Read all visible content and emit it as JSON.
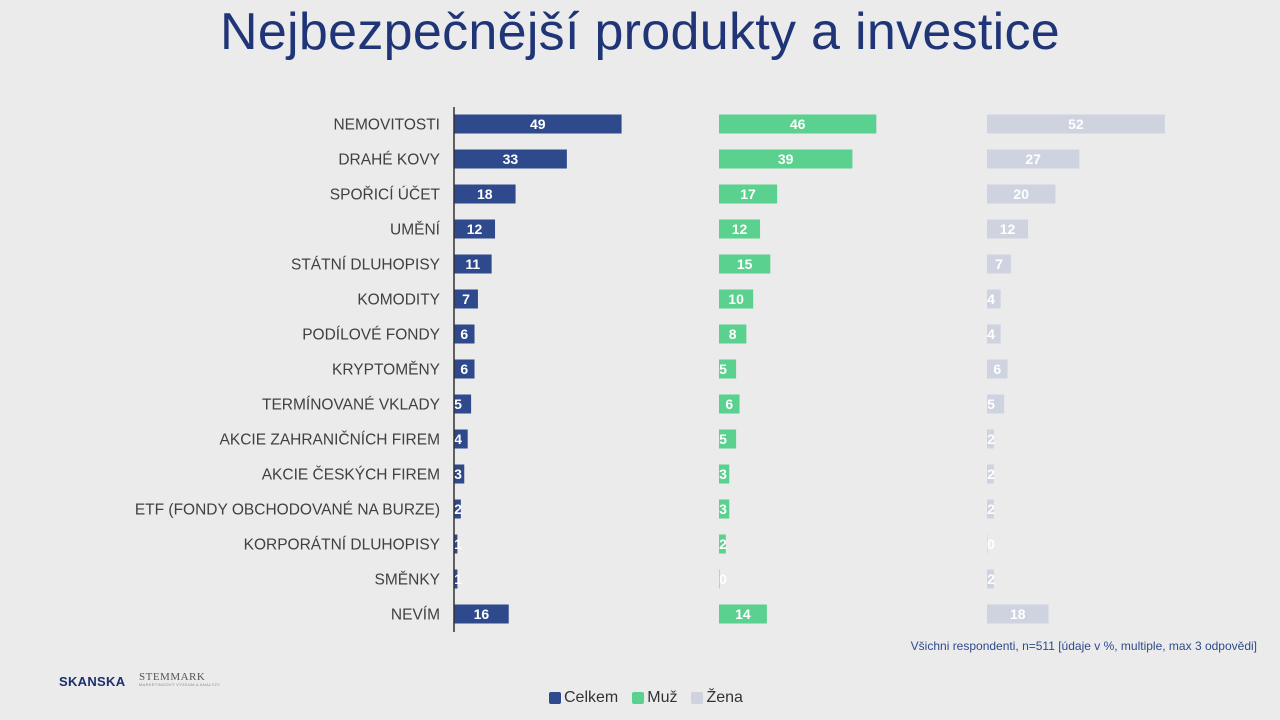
{
  "title": "Nejbezpečnější produkty a investice",
  "note": "Všichni respondenti,  n=511 [údaje v  %, multiple, max 3 odpovědi]",
  "logos": {
    "skanska": "SKANSKA",
    "stem_mark": "STEMMARK",
    "stem_mark_sub": "MARKETINGOVÝ VÝZKUM A ANALÝZY"
  },
  "colors": {
    "Celkem": "#2e4a8c",
    "Muž": "#5ad18e",
    "Žena": "#cfd3e0",
    "background": "#ebebeb",
    "title": "#1f3577"
  },
  "chart_data": {
    "type": "bar",
    "orientation": "horizontal",
    "title": "Nejbezpečnější produkty a investice",
    "categories": [
      "NEMOVITOSTI",
      "DRAHÉ KOVY",
      "SPOŘICÍ ÚČET",
      "UMĚNÍ",
      "STÁTNÍ DLUHOPISY",
      "KOMODITY",
      "PODÍLOVÉ FONDY",
      "KRYPTOMĚNY",
      "TERMÍNOVANÉ VKLADY",
      "AKCIE ZAHRANIČNÍCH FIREM",
      "AKCIE ČESKÝCH FIREM",
      "ETF (FONDY OBCHODOVANÉ NA BURZE)",
      "KORPORÁTNÍ DLUHOPISY",
      "SMĚNKY",
      "NEVÍM"
    ],
    "series": [
      {
        "name": "Celkem",
        "values": [
          49,
          33,
          18,
          12,
          11,
          7,
          6,
          6,
          5,
          4,
          3,
          2,
          1,
          1,
          16
        ]
      },
      {
        "name": "Muž",
        "values": [
          46,
          39,
          17,
          12,
          15,
          10,
          8,
          5,
          6,
          5,
          3,
          3,
          2,
          0,
          14
        ]
      },
      {
        "name": "Žena",
        "values": [
          52,
          27,
          20,
          12,
          7,
          4,
          4,
          6,
          5,
          2,
          2,
          2,
          0,
          2,
          18
        ]
      }
    ],
    "legend_position": "bottom",
    "grid": false
  }
}
